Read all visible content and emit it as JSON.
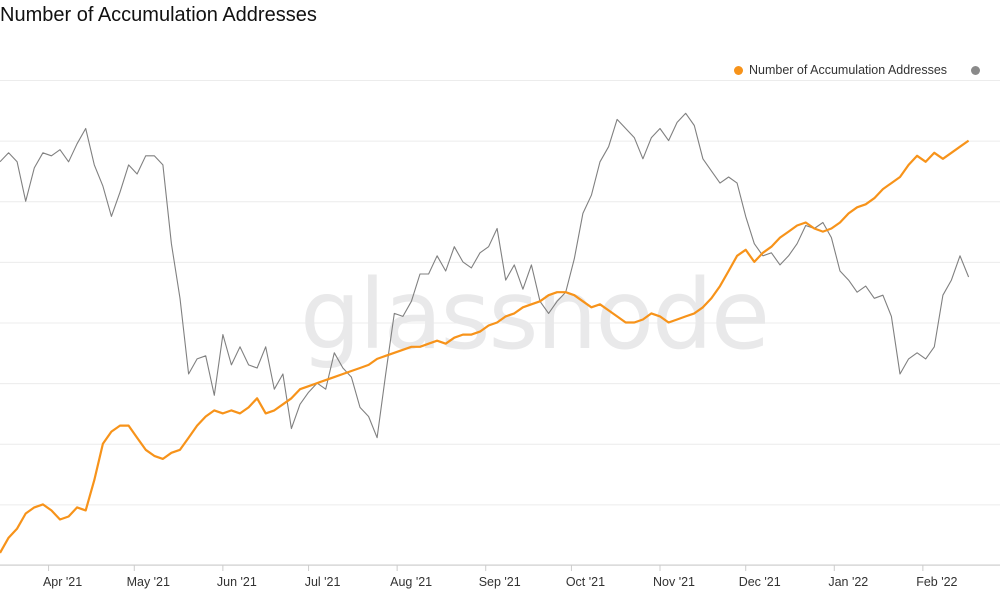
{
  "chart_data": {
    "type": "line",
    "title": "Number of Accumulation Addresses",
    "watermark": "glassnode",
    "x_axis": {
      "type": "time",
      "range": [
        "2021-03-15",
        "2022-02-28"
      ],
      "ticks": [
        {
          "date": "2021-04-01",
          "label": "Apr '21"
        },
        {
          "date": "2021-05-01",
          "label": "May '21"
        },
        {
          "date": "2021-06-01",
          "label": "Jun '21"
        },
        {
          "date": "2021-07-01",
          "label": "Jul '21"
        },
        {
          "date": "2021-08-01",
          "label": "Aug '21"
        },
        {
          "date": "2021-09-01",
          "label": "Sep '21"
        },
        {
          "date": "2021-10-01",
          "label": "Oct '21"
        },
        {
          "date": "2021-11-01",
          "label": "Nov '21"
        },
        {
          "date": "2021-12-01",
          "label": "Dec '21"
        },
        {
          "date": "2022-01-01",
          "label": "Jan '22"
        },
        {
          "date": "2022-02-01",
          "label": "Feb '22"
        }
      ]
    },
    "y_axis": {
      "tick_labels_visible": false,
      "grid": true
    },
    "legend": {
      "position": "top-right"
    },
    "series": [
      {
        "name": "Number of Accumulation Addresses",
        "color": "#f7931a",
        "points": [
          [
            "2021-03-15",
            0.4
          ],
          [
            "2021-03-18",
            0.9
          ],
          [
            "2021-03-21",
            1.2
          ],
          [
            "2021-03-24",
            1.7
          ],
          [
            "2021-03-27",
            1.9
          ],
          [
            "2021-03-30",
            2.0
          ],
          [
            "2021-04-02",
            1.8
          ],
          [
            "2021-04-05",
            1.5
          ],
          [
            "2021-04-08",
            1.6
          ],
          [
            "2021-04-11",
            1.9
          ],
          [
            "2021-04-14",
            1.8
          ],
          [
            "2021-04-17",
            2.8
          ],
          [
            "2021-04-20",
            4.0
          ],
          [
            "2021-04-23",
            4.4
          ],
          [
            "2021-04-26",
            4.6
          ],
          [
            "2021-04-29",
            4.6
          ],
          [
            "2021-05-02",
            4.2
          ],
          [
            "2021-05-05",
            3.8
          ],
          [
            "2021-05-08",
            3.6
          ],
          [
            "2021-05-11",
            3.5
          ],
          [
            "2021-05-14",
            3.7
          ],
          [
            "2021-05-17",
            3.8
          ],
          [
            "2021-05-20",
            4.2
          ],
          [
            "2021-05-23",
            4.6
          ],
          [
            "2021-05-26",
            4.9
          ],
          [
            "2021-05-29",
            5.1
          ],
          [
            "2021-06-01",
            5.0
          ],
          [
            "2021-06-04",
            5.1
          ],
          [
            "2021-06-07",
            5.0
          ],
          [
            "2021-06-10",
            5.2
          ],
          [
            "2021-06-13",
            5.5
          ],
          [
            "2021-06-16",
            5.0
          ],
          [
            "2021-06-19",
            5.1
          ],
          [
            "2021-06-22",
            5.3
          ],
          [
            "2021-06-25",
            5.5
          ],
          [
            "2021-06-28",
            5.8
          ],
          [
            "2021-07-01",
            5.9
          ],
          [
            "2021-07-04",
            6.0
          ],
          [
            "2021-07-07",
            6.1
          ],
          [
            "2021-07-10",
            6.2
          ],
          [
            "2021-07-13",
            6.3
          ],
          [
            "2021-07-16",
            6.4
          ],
          [
            "2021-07-19",
            6.5
          ],
          [
            "2021-07-22",
            6.6
          ],
          [
            "2021-07-25",
            6.8
          ],
          [
            "2021-07-28",
            6.9
          ],
          [
            "2021-07-31",
            7.0
          ],
          [
            "2021-08-03",
            7.1
          ],
          [
            "2021-08-06",
            7.2
          ],
          [
            "2021-08-09",
            7.2
          ],
          [
            "2021-08-12",
            7.3
          ],
          [
            "2021-08-15",
            7.4
          ],
          [
            "2021-08-18",
            7.3
          ],
          [
            "2021-08-21",
            7.5
          ],
          [
            "2021-08-24",
            7.6
          ],
          [
            "2021-08-27",
            7.6
          ],
          [
            "2021-08-30",
            7.7
          ],
          [
            "2021-09-02",
            7.9
          ],
          [
            "2021-09-05",
            8.0
          ],
          [
            "2021-09-08",
            8.2
          ],
          [
            "2021-09-11",
            8.3
          ],
          [
            "2021-09-14",
            8.5
          ],
          [
            "2021-09-17",
            8.6
          ],
          [
            "2021-09-20",
            8.7
          ],
          [
            "2021-09-23",
            8.9
          ],
          [
            "2021-09-26",
            9.0
          ],
          [
            "2021-09-29",
            9.0
          ],
          [
            "2021-10-02",
            8.9
          ],
          [
            "2021-10-05",
            8.7
          ],
          [
            "2021-10-08",
            8.5
          ],
          [
            "2021-10-11",
            8.6
          ],
          [
            "2021-10-14",
            8.4
          ],
          [
            "2021-10-17",
            8.2
          ],
          [
            "2021-10-20",
            8.0
          ],
          [
            "2021-10-23",
            8.0
          ],
          [
            "2021-10-26",
            8.1
          ],
          [
            "2021-10-29",
            8.3
          ],
          [
            "2021-11-01",
            8.2
          ],
          [
            "2021-11-04",
            8.0
          ],
          [
            "2021-11-07",
            8.1
          ],
          [
            "2021-11-10",
            8.2
          ],
          [
            "2021-11-13",
            8.3
          ],
          [
            "2021-11-16",
            8.5
          ],
          [
            "2021-11-19",
            8.8
          ],
          [
            "2021-11-22",
            9.2
          ],
          [
            "2021-11-25",
            9.7
          ],
          [
            "2021-11-28",
            10.2
          ],
          [
            "2021-12-01",
            10.4
          ],
          [
            "2021-12-04",
            10.0
          ],
          [
            "2021-12-07",
            10.3
          ],
          [
            "2021-12-10",
            10.5
          ],
          [
            "2021-12-13",
            10.8
          ],
          [
            "2021-12-16",
            11.0
          ],
          [
            "2021-12-19",
            11.2
          ],
          [
            "2021-12-22",
            11.3
          ],
          [
            "2021-12-25",
            11.1
          ],
          [
            "2021-12-28",
            11.0
          ],
          [
            "2021-12-31",
            11.1
          ],
          [
            "2022-01-03",
            11.3
          ],
          [
            "2022-01-06",
            11.6
          ],
          [
            "2022-01-09",
            11.8
          ],
          [
            "2022-01-12",
            11.9
          ],
          [
            "2022-01-15",
            12.1
          ],
          [
            "2022-01-18",
            12.4
          ],
          [
            "2022-01-21",
            12.6
          ],
          [
            "2022-01-24",
            12.8
          ],
          [
            "2022-01-27",
            13.2
          ],
          [
            "2022-01-30",
            13.5
          ],
          [
            "2022-02-02",
            13.3
          ],
          [
            "2022-02-05",
            13.6
          ],
          [
            "2022-02-08",
            13.4
          ],
          [
            "2022-02-11",
            13.6
          ],
          [
            "2022-02-14",
            13.8
          ],
          [
            "2022-02-17",
            14.0
          ]
        ]
      },
      {
        "name": "",
        "color": "#808080",
        "points": [
          [
            "2021-03-15",
            13.3
          ],
          [
            "2021-03-18",
            13.6
          ],
          [
            "2021-03-21",
            13.3
          ],
          [
            "2021-03-24",
            12.0
          ],
          [
            "2021-03-27",
            13.1
          ],
          [
            "2021-03-30",
            13.6
          ],
          [
            "2021-04-02",
            13.5
          ],
          [
            "2021-04-05",
            13.7
          ],
          [
            "2021-04-08",
            13.3
          ],
          [
            "2021-04-11",
            13.9
          ],
          [
            "2021-04-14",
            14.4
          ],
          [
            "2021-04-17",
            13.2
          ],
          [
            "2021-04-20",
            12.5
          ],
          [
            "2021-04-23",
            11.5
          ],
          [
            "2021-04-26",
            12.3
          ],
          [
            "2021-04-29",
            13.2
          ],
          [
            "2021-05-02",
            12.9
          ],
          [
            "2021-05-05",
            13.5
          ],
          [
            "2021-05-08",
            13.5
          ],
          [
            "2021-05-11",
            13.2
          ],
          [
            "2021-05-14",
            10.6
          ],
          [
            "2021-05-17",
            8.8
          ],
          [
            "2021-05-20",
            6.3
          ],
          [
            "2021-05-23",
            6.8
          ],
          [
            "2021-05-26",
            6.9
          ],
          [
            "2021-05-29",
            5.6
          ],
          [
            "2021-06-01",
            7.6
          ],
          [
            "2021-06-04",
            6.6
          ],
          [
            "2021-06-07",
            7.2
          ],
          [
            "2021-06-10",
            6.6
          ],
          [
            "2021-06-13",
            6.5
          ],
          [
            "2021-06-16",
            7.2
          ],
          [
            "2021-06-19",
            5.8
          ],
          [
            "2021-06-22",
            6.3
          ],
          [
            "2021-06-25",
            4.5
          ],
          [
            "2021-06-28",
            5.3
          ],
          [
            "2021-07-01",
            5.7
          ],
          [
            "2021-07-04",
            6.0
          ],
          [
            "2021-07-07",
            5.8
          ],
          [
            "2021-07-10",
            7.0
          ],
          [
            "2021-07-13",
            6.5
          ],
          [
            "2021-07-16",
            6.2
          ],
          [
            "2021-07-19",
            5.2
          ],
          [
            "2021-07-22",
            4.9
          ],
          [
            "2021-07-25",
            4.2
          ],
          [
            "2021-07-28",
            6.3
          ],
          [
            "2021-07-31",
            8.3
          ],
          [
            "2021-08-03",
            8.2
          ],
          [
            "2021-08-06",
            8.7
          ],
          [
            "2021-08-09",
            9.6
          ],
          [
            "2021-08-12",
            9.6
          ],
          [
            "2021-08-15",
            10.2
          ],
          [
            "2021-08-18",
            9.7
          ],
          [
            "2021-08-21",
            10.5
          ],
          [
            "2021-08-24",
            10.0
          ],
          [
            "2021-08-27",
            9.8
          ],
          [
            "2021-08-30",
            10.3
          ],
          [
            "2021-09-02",
            10.5
          ],
          [
            "2021-09-05",
            11.1
          ],
          [
            "2021-09-08",
            9.4
          ],
          [
            "2021-09-11",
            9.9
          ],
          [
            "2021-09-14",
            9.1
          ],
          [
            "2021-09-17",
            9.9
          ],
          [
            "2021-09-20",
            8.7
          ],
          [
            "2021-09-23",
            8.3
          ],
          [
            "2021-09-26",
            8.7
          ],
          [
            "2021-09-29",
            9.0
          ],
          [
            "2021-10-02",
            10.1
          ],
          [
            "2021-10-05",
            11.6
          ],
          [
            "2021-10-08",
            12.2
          ],
          [
            "2021-10-11",
            13.3
          ],
          [
            "2021-10-14",
            13.8
          ],
          [
            "2021-10-17",
            14.7
          ],
          [
            "2021-10-20",
            14.4
          ],
          [
            "2021-10-23",
            14.1
          ],
          [
            "2021-10-26",
            13.4
          ],
          [
            "2021-10-29",
            14.1
          ],
          [
            "2021-11-01",
            14.4
          ],
          [
            "2021-11-04",
            14.0
          ],
          [
            "2021-11-07",
            14.6
          ],
          [
            "2021-11-10",
            14.9
          ],
          [
            "2021-11-13",
            14.5
          ],
          [
            "2021-11-16",
            13.4
          ],
          [
            "2021-11-19",
            13.0
          ],
          [
            "2021-11-22",
            12.6
          ],
          [
            "2021-11-25",
            12.8
          ],
          [
            "2021-11-28",
            12.6
          ],
          [
            "2021-12-01",
            11.5
          ],
          [
            "2021-12-04",
            10.6
          ],
          [
            "2021-12-07",
            10.2
          ],
          [
            "2021-12-10",
            10.3
          ],
          [
            "2021-12-13",
            9.9
          ],
          [
            "2021-12-16",
            10.2
          ],
          [
            "2021-12-19",
            10.6
          ],
          [
            "2021-12-22",
            11.2
          ],
          [
            "2021-12-25",
            11.1
          ],
          [
            "2021-12-28",
            11.3
          ],
          [
            "2021-12-31",
            10.8
          ],
          [
            "2022-01-03",
            9.7
          ],
          [
            "2022-01-06",
            9.4
          ],
          [
            "2022-01-09",
            9.0
          ],
          [
            "2022-01-12",
            9.2
          ],
          [
            "2022-01-15",
            8.8
          ],
          [
            "2022-01-18",
            8.9
          ],
          [
            "2022-01-21",
            8.2
          ],
          [
            "2022-01-24",
            6.3
          ],
          [
            "2022-01-27",
            6.8
          ],
          [
            "2022-01-30",
            7.0
          ],
          [
            "2022-02-02",
            6.8
          ],
          [
            "2022-02-05",
            7.2
          ],
          [
            "2022-02-08",
            8.9
          ],
          [
            "2022-02-11",
            9.4
          ],
          [
            "2022-02-14",
            10.2
          ],
          [
            "2022-02-17",
            9.5
          ]
        ]
      }
    ]
  }
}
